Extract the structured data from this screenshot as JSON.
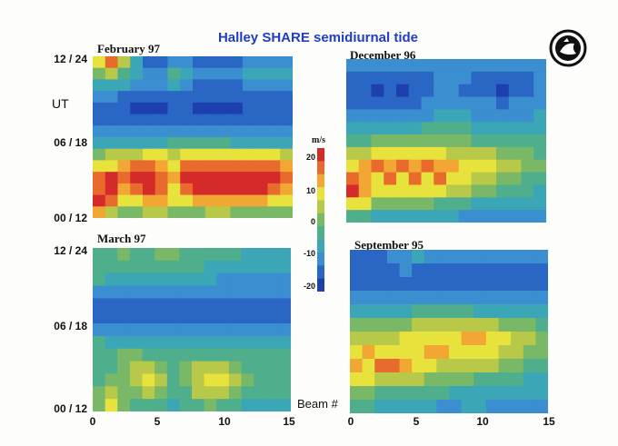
{
  "title": "Halley SHARE semidiurnal tide",
  "ut_label": "UT",
  "beam_label": "Beam #",
  "colorbar": {
    "unit": "m/s",
    "ticks": [
      "20",
      "10",
      "0",
      "-10",
      "-20"
    ],
    "colors": [
      "#1e3fae",
      "#2a66c4",
      "#3b8fd0",
      "#3aa6b6",
      "#4fae8c",
      "#79b866",
      "#b8c848",
      "#e8e23c",
      "#f2a634",
      "#e86a2c",
      "#d42a2a"
    ]
  },
  "y_ticks": [
    "12 / 24",
    "06 / 18",
    "00 / 12"
  ],
  "x_ticks": [
    "0",
    "5",
    "10",
    "15"
  ],
  "chart_data": [
    {
      "type": "heatmap",
      "title": "February 97",
      "x": [
        0,
        15
      ],
      "ylabel": "UT",
      "values": [
        [
          7,
          9,
          6,
          3,
          1,
          1,
          2,
          2,
          1,
          1,
          1,
          1,
          2,
          2,
          2,
          2
        ],
        [
          5,
          6,
          4,
          3,
          2,
          2,
          4,
          3,
          2,
          2,
          2,
          2,
          3,
          3,
          3,
          3
        ],
        [
          3,
          3,
          3,
          2,
          2,
          2,
          3,
          2,
          1,
          1,
          1,
          1,
          2,
          2,
          2,
          2
        ],
        [
          2,
          2,
          1,
          1,
          1,
          1,
          1,
          1,
          1,
          1,
          1,
          1,
          1,
          1,
          1,
          1
        ],
        [
          1,
          1,
          1,
          0,
          0,
          0,
          1,
          1,
          0,
          0,
          0,
          0,
          1,
          1,
          1,
          1
        ],
        [
          1,
          1,
          1,
          1,
          1,
          1,
          1,
          1,
          1,
          1,
          1,
          1,
          1,
          1,
          1,
          1
        ],
        [
          2,
          2,
          2,
          2,
          2,
          2,
          2,
          2,
          2,
          2,
          2,
          2,
          2,
          2,
          2,
          2
        ],
        [
          3,
          3,
          3,
          3,
          3,
          3,
          4,
          4,
          4,
          4,
          4,
          3,
          3,
          3,
          3,
          3
        ],
        [
          5,
          6,
          6,
          6,
          7,
          7,
          6,
          7,
          7,
          7,
          7,
          7,
          7,
          7,
          7,
          6
        ],
        [
          7,
          7,
          8,
          9,
          9,
          8,
          7,
          9,
          9,
          9,
          9,
          9,
          9,
          9,
          9,
          8
        ],
        [
          9,
          10,
          9,
          10,
          10,
          9,
          8,
          10,
          10,
          10,
          10,
          10,
          10,
          10,
          10,
          9
        ],
        [
          9,
          10,
          8,
          9,
          10,
          9,
          7,
          9,
          10,
          10,
          10,
          10,
          10,
          10,
          9,
          8
        ],
        [
          10,
          9,
          7,
          7,
          8,
          8,
          7,
          7,
          8,
          8,
          8,
          8,
          8,
          8,
          7,
          7
        ],
        [
          8,
          6,
          5,
          5,
          6,
          6,
          5,
          5,
          5,
          6,
          6,
          5,
          5,
          5,
          5,
          5
        ]
      ]
    },
    {
      "type": "heatmap",
      "title": "December 96",
      "x": [
        0,
        15
      ],
      "values": [
        [
          2,
          2,
          2,
          2,
          2,
          2,
          2,
          2,
          2,
          2,
          2,
          2,
          2,
          2,
          2,
          2
        ],
        [
          1,
          1,
          1,
          1,
          1,
          1,
          1,
          2,
          2,
          2,
          1,
          1,
          1,
          1,
          1,
          2
        ],
        [
          1,
          1,
          0,
          1,
          0,
          1,
          1,
          2,
          2,
          1,
          1,
          1,
          0,
          1,
          1,
          2
        ],
        [
          1,
          1,
          1,
          1,
          1,
          1,
          2,
          2,
          2,
          2,
          2,
          2,
          1,
          2,
          2,
          2
        ],
        [
          2,
          2,
          2,
          2,
          2,
          2,
          2,
          3,
          3,
          3,
          2,
          2,
          2,
          2,
          2,
          3
        ],
        [
          3,
          3,
          3,
          3,
          3,
          3,
          4,
          4,
          4,
          4,
          3,
          3,
          3,
          3,
          3,
          3
        ],
        [
          4,
          4,
          5,
          5,
          5,
          5,
          5,
          5,
          5,
          5,
          4,
          4,
          4,
          4,
          4,
          4
        ],
        [
          6,
          6,
          7,
          7,
          7,
          7,
          7,
          7,
          6,
          6,
          6,
          6,
          5,
          5,
          5,
          4
        ],
        [
          7,
          8,
          9,
          8,
          9,
          8,
          9,
          8,
          8,
          7,
          7,
          7,
          6,
          6,
          5,
          5
        ],
        [
          9,
          8,
          7,
          9,
          7,
          9,
          7,
          9,
          7,
          7,
          6,
          6,
          5,
          5,
          4,
          4
        ],
        [
          10,
          8,
          7,
          7,
          7,
          7,
          7,
          7,
          6,
          6,
          5,
          5,
          4,
          4,
          4,
          3
        ],
        [
          7,
          7,
          5,
          5,
          5,
          5,
          5,
          4,
          4,
          4,
          3,
          3,
          3,
          3,
          3,
          3
        ],
        [
          4,
          4,
          3,
          3,
          3,
          3,
          3,
          3,
          3,
          2,
          2,
          2,
          2,
          2,
          2,
          2
        ]
      ]
    },
    {
      "type": "heatmap",
      "title": "March 97",
      "x": [
        0,
        15
      ],
      "values": [
        [
          4,
          4,
          5,
          4,
          4,
          5,
          5,
          4,
          4,
          4,
          4,
          4,
          3,
          3,
          3,
          3
        ],
        [
          4,
          4,
          4,
          4,
          4,
          4,
          4,
          4,
          4,
          3,
          3,
          3,
          3,
          3,
          3,
          3
        ],
        [
          4,
          3,
          3,
          3,
          3,
          3,
          3,
          3,
          3,
          3,
          2,
          2,
          2,
          2,
          2,
          2
        ],
        [
          2,
          2,
          2,
          2,
          2,
          2,
          2,
          2,
          2,
          2,
          2,
          2,
          2,
          2,
          2,
          2
        ],
        [
          1,
          1,
          1,
          1,
          1,
          1,
          1,
          1,
          1,
          1,
          1,
          1,
          1,
          1,
          1,
          1
        ],
        [
          1,
          1,
          1,
          1,
          1,
          1,
          1,
          1,
          1,
          1,
          1,
          1,
          1,
          1,
          1,
          1
        ],
        [
          2,
          2,
          2,
          2,
          2,
          2,
          2,
          2,
          2,
          2,
          2,
          2,
          2,
          2,
          2,
          2
        ],
        [
          4,
          3,
          3,
          3,
          3,
          3,
          3,
          3,
          3,
          3,
          3,
          3,
          3,
          3,
          3,
          3
        ],
        [
          4,
          4,
          5,
          5,
          4,
          4,
          4,
          4,
          4,
          4,
          4,
          4,
          4,
          4,
          4,
          4
        ],
        [
          4,
          4,
          5,
          6,
          6,
          5,
          4,
          5,
          6,
          6,
          6,
          5,
          4,
          4,
          4,
          4
        ],
        [
          4,
          5,
          5,
          6,
          7,
          6,
          4,
          5,
          6,
          7,
          7,
          6,
          5,
          4,
          4,
          4
        ],
        [
          5,
          6,
          5,
          5,
          6,
          5,
          4,
          4,
          6,
          6,
          6,
          5,
          4,
          4,
          4,
          4
        ],
        [
          5,
          7,
          5,
          4,
          4,
          4,
          3,
          4,
          4,
          5,
          4,
          4,
          3,
          3,
          3,
          3
        ]
      ]
    },
    {
      "type": "heatmap",
      "title": "September 95",
      "x": [
        0,
        15
      ],
      "values": [
        [
          1,
          1,
          1,
          2,
          2,
          3,
          2,
          2,
          2,
          2,
          2,
          2,
          2,
          2,
          2,
          2
        ],
        [
          1,
          1,
          1,
          1,
          2,
          1,
          1,
          1,
          1,
          1,
          1,
          1,
          1,
          1,
          1,
          1
        ],
        [
          1,
          1,
          1,
          1,
          1,
          1,
          1,
          1,
          1,
          1,
          1,
          1,
          1,
          1,
          1,
          1
        ],
        [
          2,
          2,
          2,
          2,
          2,
          2,
          2,
          2,
          2,
          2,
          2,
          2,
          2,
          2,
          2,
          2
        ],
        [
          3,
          3,
          3,
          3,
          3,
          4,
          4,
          4,
          4,
          4,
          3,
          3,
          3,
          3,
          3,
          3
        ],
        [
          5,
          5,
          5,
          5,
          5,
          6,
          6,
          6,
          6,
          6,
          6,
          6,
          5,
          5,
          5,
          4
        ],
        [
          6,
          6,
          6,
          6,
          7,
          7,
          7,
          7,
          7,
          8,
          8,
          7,
          7,
          6,
          6,
          5
        ],
        [
          7,
          8,
          7,
          7,
          7,
          7,
          8,
          8,
          7,
          7,
          7,
          7,
          6,
          6,
          5,
          5
        ],
        [
          8,
          7,
          9,
          9,
          8,
          7,
          7,
          6,
          6,
          6,
          6,
          6,
          5,
          5,
          4,
          4
        ],
        [
          7,
          7,
          6,
          6,
          6,
          6,
          5,
          5,
          5,
          5,
          4,
          4,
          4,
          4,
          3,
          3
        ],
        [
          5,
          5,
          4,
          4,
          4,
          4,
          4,
          4,
          3,
          3,
          3,
          3,
          3,
          3,
          3,
          3
        ],
        [
          4,
          4,
          3,
          3,
          3,
          3,
          3,
          2,
          2,
          3,
          3,
          2,
          2,
          2,
          2,
          2
        ]
      ]
    }
  ]
}
